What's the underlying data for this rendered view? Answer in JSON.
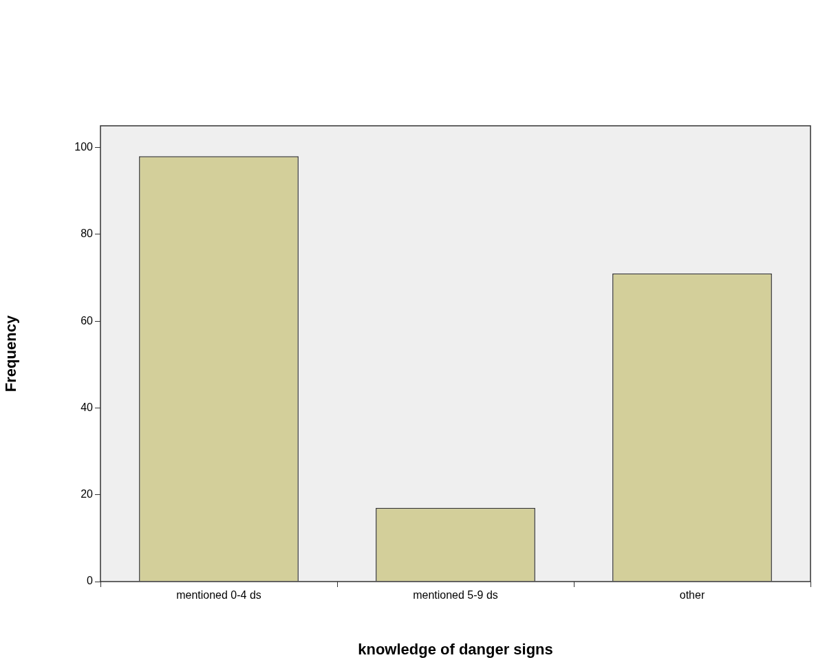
{
  "chart_data": {
    "type": "bar",
    "xlabel": "knowledge of danger signs",
    "ylabel": "Frequency",
    "categories": [
      "mentioned 0-4 ds",
      "mentioned 5-9 ds",
      "other"
    ],
    "values": [
      98,
      17,
      71
    ],
    "color": "#d3cf9a",
    "ylim": [
      0,
      105
    ],
    "yticks": [
      0,
      20,
      40,
      60,
      80,
      100
    ],
    "grid": false,
    "legend": false
  }
}
